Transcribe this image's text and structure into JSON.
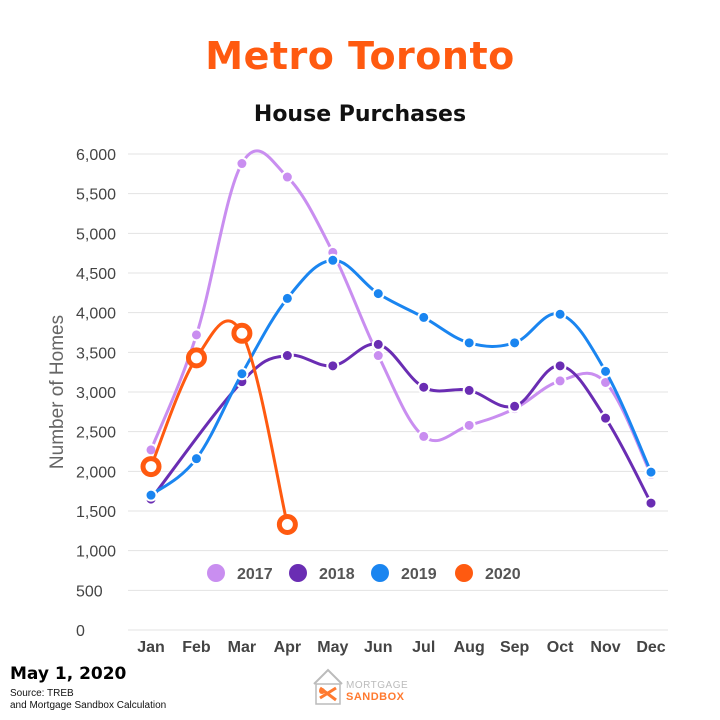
{
  "header": {
    "title": "Metro Toronto",
    "subtitle": "House Purchases"
  },
  "footer": {
    "date": "May 1, 2020",
    "source_line1": "Source: TREB",
    "source_line2": "and Mortgage Sandbox Calculation"
  },
  "logo": {
    "line1": "MORTGAGE",
    "line2": "SANDBOX"
  },
  "chart_data": {
    "type": "line",
    "title": "House Purchases",
    "ylabel": "Number of Homes",
    "xlabel": "",
    "ylim": [
      0,
      6000
    ],
    "yticks": [
      0,
      500,
      1000,
      1500,
      2000,
      2500,
      3000,
      3500,
      4000,
      4500,
      5000,
      5500,
      6000
    ],
    "ytick_labels": [
      "0",
      "500",
      "1,000",
      "1,500",
      "2,000",
      "2,500",
      "3,000",
      "3,500",
      "4,000",
      "4,500",
      "5,000",
      "5,500",
      "6,000"
    ],
    "categories": [
      "Jan",
      "Feb",
      "Mar",
      "Apr",
      "May",
      "Jun",
      "Jul",
      "Aug",
      "Sep",
      "Oct",
      "Nov",
      "Dec"
    ],
    "grid": true,
    "legend_position": "inside-bottom",
    "series": [
      {
        "name": "2017",
        "color": "#c98ef0",
        "values": [
          2270,
          3720,
          5880,
          5710,
          4760,
          3460,
          2440,
          2580,
          2790,
          3140,
          3120,
          1960
        ]
      },
      {
        "name": "2018",
        "color": "#6a2db3",
        "values": [
          1650,
          null,
          3130,
          3460,
          3330,
          3600,
          3060,
          3020,
          2820,
          3330,
          2670,
          1600
        ]
      },
      {
        "name": "2019",
        "color": "#1a85f0",
        "values": [
          1700,
          2160,
          3230,
          4180,
          4660,
          4240,
          3940,
          3620,
          3620,
          3980,
          3260,
          1990
        ]
      },
      {
        "name": "2020",
        "color": "#ff5a10",
        "values": [
          2060,
          3430,
          3740,
          1330,
          null,
          null,
          null,
          null,
          null,
          null,
          null,
          null
        ]
      }
    ]
  }
}
